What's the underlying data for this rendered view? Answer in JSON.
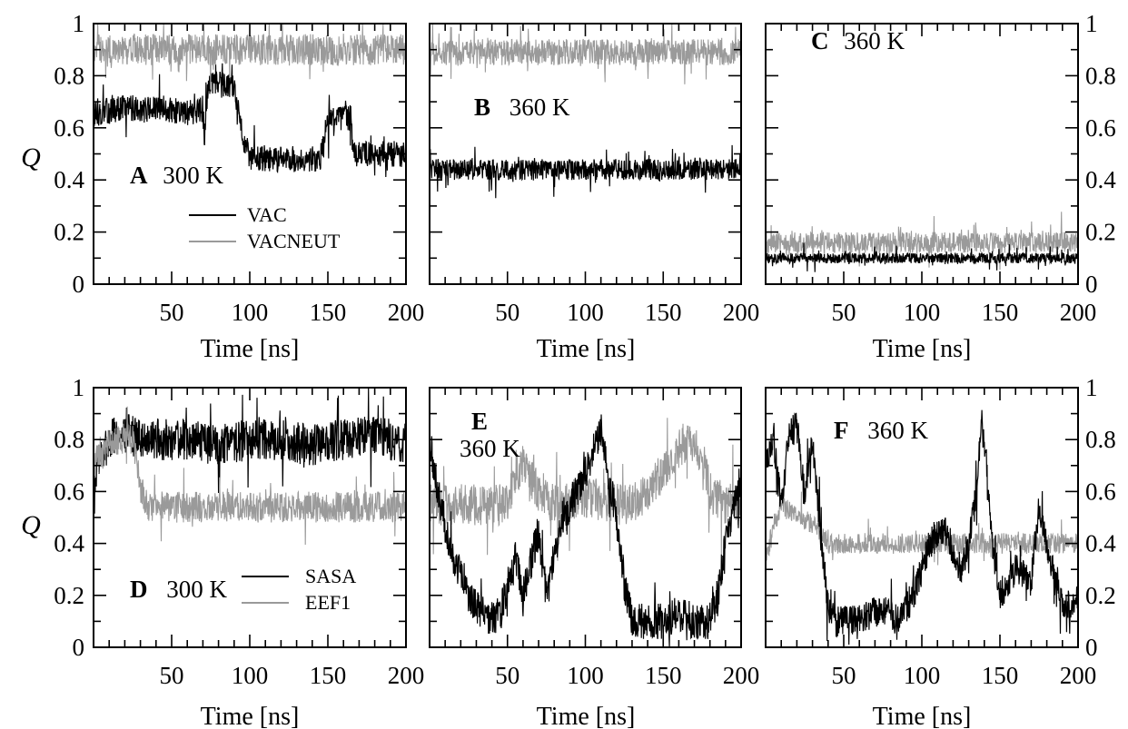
{
  "figure": {
    "y_axis_symbol": "Q",
    "colors": {
      "dark_series": "#000000",
      "light_series": "#9a9a9a",
      "axes": "#000000"
    }
  },
  "chart_data": [
    {
      "id": "A",
      "type": "line",
      "letter": "A",
      "temperature": "300 K",
      "xlabel": "Time [ns]",
      "ylabel": "Q",
      "xlim": [
        0,
        200
      ],
      "ylim": [
        0,
        1
      ],
      "xticks": [
        50,
        100,
        150,
        200
      ],
      "yticks": [
        0,
        0.2,
        0.4,
        0.6,
        0.8,
        1
      ],
      "ytick_labels": [
        "0",
        "0.2",
        "0.4",
        "0.6",
        "0.8",
        "1"
      ],
      "ytick_side": "left",
      "legend_position": "bottom-center",
      "series": [
        {
          "name": "VAC",
          "color": "#000000",
          "x": [
            0,
            20,
            40,
            60,
            70,
            71,
            72,
            75,
            90,
            95,
            100,
            110,
            130,
            145,
            150,
            165,
            166,
            170,
            190,
            200
          ],
          "y": [
            0.65,
            0.68,
            0.67,
            0.66,
            0.67,
            0.55,
            0.7,
            0.77,
            0.76,
            0.58,
            0.48,
            0.48,
            0.48,
            0.48,
            0.63,
            0.64,
            0.5,
            0.5,
            0.5,
            0.5
          ],
          "noise": 0.05
        },
        {
          "name": "VACNEUT",
          "color": "#9a9a9a",
          "x": [
            0,
            200
          ],
          "y": [
            0.9,
            0.9
          ],
          "noise": 0.06
        }
      ]
    },
    {
      "id": "B",
      "type": "line",
      "letter": "B",
      "temperature": "360 K",
      "xlabel": "Time [ns]",
      "ylabel": "",
      "xlim": [
        0,
        200
      ],
      "ylim": [
        0,
        1
      ],
      "xticks": [
        50,
        100,
        150,
        200
      ],
      "yticks": [
        0,
        0.2,
        0.4,
        0.6,
        0.8,
        1
      ],
      "ytick_labels": [],
      "ytick_side": "none",
      "series": [
        {
          "name": "",
          "color": "#000000",
          "x": [
            0,
            200
          ],
          "y": [
            0.44,
            0.44
          ],
          "noise": 0.04
        },
        {
          "name": "",
          "color": "#9a9a9a",
          "x": [
            0,
            200
          ],
          "y": [
            0.89,
            0.89
          ],
          "noise": 0.05
        }
      ]
    },
    {
      "id": "C",
      "type": "line",
      "letter": "C",
      "temperature": "360 K",
      "xlabel": "Time [ns]",
      "ylabel": "",
      "xlim": [
        0,
        200
      ],
      "ylim": [
        0,
        1
      ],
      "xticks": [
        50,
        100,
        150,
        200
      ],
      "yticks": [
        0,
        0.2,
        0.4,
        0.6,
        0.8,
        1
      ],
      "ytick_labels": [
        "0",
        "0.2",
        "0.4",
        "0.6",
        "0.8",
        "1"
      ],
      "ytick_side": "right",
      "series": [
        {
          "name": "",
          "color": "#9a9a9a",
          "x": [
            0,
            200
          ],
          "y": [
            0.16,
            0.16
          ],
          "noise": 0.04
        },
        {
          "name": "",
          "color": "#000000",
          "x": [
            0,
            200
          ],
          "y": [
            0.1,
            0.1
          ],
          "noise": 0.02
        }
      ]
    },
    {
      "id": "D",
      "type": "line",
      "letter": "D",
      "temperature": "300 K",
      "xlabel": "Time [ns]",
      "ylabel": "Q",
      "xlim": [
        0,
        200
      ],
      "ylim": [
        0,
        1
      ],
      "xticks": [
        50,
        100,
        150,
        200
      ],
      "yticks": [
        0,
        0.2,
        0.4,
        0.6,
        0.8,
        1
      ],
      "ytick_labels": [
        "0",
        "0.2",
        "0.4",
        "0.6",
        "0.8",
        "1"
      ],
      "ytick_side": "left",
      "legend_position": "bottom-center",
      "series": [
        {
          "name": "SASA",
          "color": "#000000",
          "x": [
            0,
            10,
            20,
            40,
            60,
            80,
            100,
            120,
            140,
            160,
            180,
            200
          ],
          "y": [
            0.65,
            0.8,
            0.82,
            0.8,
            0.8,
            0.78,
            0.8,
            0.8,
            0.78,
            0.8,
            0.82,
            0.78
          ],
          "noise": 0.08
        },
        {
          "name": "EEF1",
          "color": "#9a9a9a",
          "x": [
            0,
            10,
            25,
            30,
            35,
            60,
            100,
            150,
            200
          ],
          "y": [
            0.7,
            0.8,
            0.8,
            0.62,
            0.54,
            0.54,
            0.54,
            0.54,
            0.54
          ],
          "noise": 0.06
        }
      ]
    },
    {
      "id": "E",
      "type": "line",
      "letter": "E",
      "temperature": "360 K",
      "xlabel": "Time [ns]",
      "ylabel": "",
      "xlim": [
        0,
        200
      ],
      "ylim": [
        0,
        1
      ],
      "xticks": [
        50,
        100,
        150,
        200
      ],
      "yticks": [
        0,
        0.2,
        0.4,
        0.6,
        0.8,
        1
      ],
      "ytick_labels": [],
      "ytick_side": "none",
      "series": [
        {
          "name": "",
          "color": "#9a9a9a",
          "x": [
            0,
            20,
            40,
            50,
            55,
            60,
            70,
            80,
            100,
            120,
            130,
            140,
            155,
            165,
            175,
            180,
            190,
            200
          ],
          "y": [
            0.55,
            0.55,
            0.55,
            0.55,
            0.65,
            0.72,
            0.6,
            0.55,
            0.58,
            0.55,
            0.55,
            0.6,
            0.72,
            0.8,
            0.75,
            0.6,
            0.55,
            0.55
          ],
          "noise": 0.08
        },
        {
          "name": "",
          "color": "#000000",
          "x": [
            0,
            5,
            15,
            25,
            35,
            45,
            55,
            60,
            70,
            75,
            85,
            95,
            105,
            110,
            115,
            120,
            125,
            130,
            140,
            150,
            160,
            170,
            180,
            185,
            190,
            195,
            200
          ],
          "y": [
            0.8,
            0.6,
            0.35,
            0.2,
            0.12,
            0.12,
            0.35,
            0.2,
            0.45,
            0.2,
            0.5,
            0.6,
            0.75,
            0.85,
            0.65,
            0.5,
            0.25,
            0.1,
            0.1,
            0.1,
            0.12,
            0.1,
            0.1,
            0.2,
            0.4,
            0.55,
            0.6
          ],
          "noise": 0.07
        }
      ]
    },
    {
      "id": "F",
      "type": "line",
      "letter": "F",
      "temperature": "360 K",
      "xlabel": "Time [ns]",
      "ylabel": "",
      "xlim": [
        0,
        200
      ],
      "ylim": [
        0,
        1
      ],
      "xticks": [
        50,
        100,
        150,
        200
      ],
      "yticks": [
        0,
        0.2,
        0.4,
        0.6,
        0.8,
        1
      ],
      "ytick_labels": [
        "0",
        "0.2",
        "0.4",
        "0.6",
        "0.8",
        "1"
      ],
      "ytick_side": "right",
      "series": [
        {
          "name": "",
          "color": "#9a9a9a",
          "x": [
            0,
            10,
            20,
            30,
            35,
            40,
            60,
            100,
            150,
            200
          ],
          "y": [
            0.35,
            0.55,
            0.5,
            0.48,
            0.45,
            0.4,
            0.4,
            0.4,
            0.4,
            0.4
          ],
          "noise": 0.04
        },
        {
          "name": "",
          "color": "#000000",
          "x": [
            0,
            5,
            10,
            15,
            20,
            25,
            30,
            35,
            40,
            45,
            55,
            65,
            75,
            85,
            95,
            105,
            115,
            125,
            130,
            135,
            138,
            141,
            145,
            150,
            160,
            170,
            175,
            180,
            190,
            200
          ],
          "y": [
            0.7,
            0.8,
            0.55,
            0.82,
            0.85,
            0.6,
            0.8,
            0.45,
            0.15,
            0.1,
            0.1,
            0.12,
            0.15,
            0.1,
            0.2,
            0.4,
            0.45,
            0.3,
            0.4,
            0.6,
            0.85,
            0.75,
            0.4,
            0.2,
            0.3,
            0.25,
            0.55,
            0.4,
            0.15,
            0.18
          ],
          "noise": 0.06
        }
      ]
    }
  ]
}
